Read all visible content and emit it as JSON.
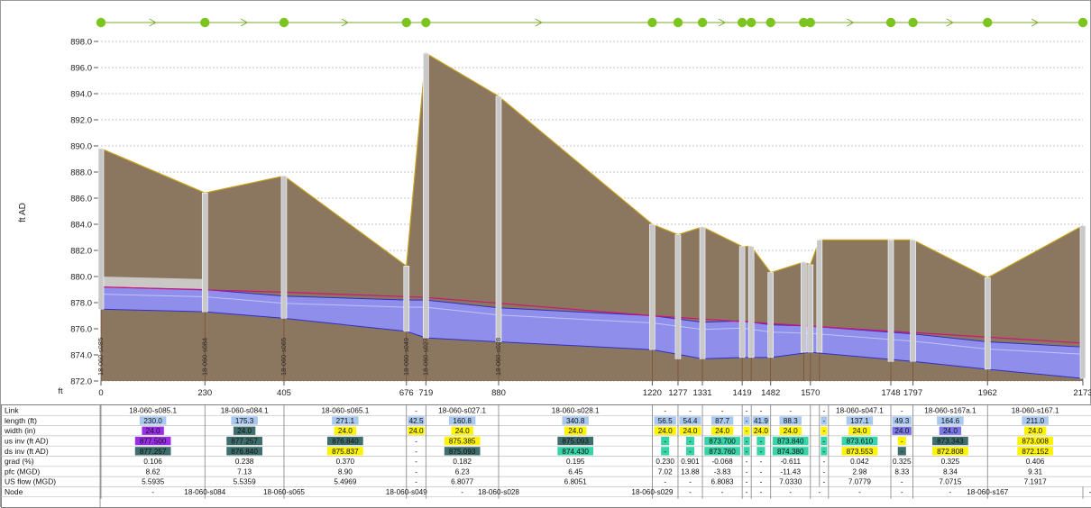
{
  "chart_data": {
    "type": "long-section-profile",
    "ylabel": "ft AD",
    "xlabel": "ft",
    "ylim": [
      872.0,
      898.0
    ],
    "yticks": [
      "872.0",
      "874.0",
      "876.0",
      "878.0",
      "880.0",
      "882.0",
      "884.0",
      "886.0",
      "888.0",
      "890.0",
      "892.0",
      "894.0",
      "896.0",
      "898.0"
    ],
    "xlim": [
      0,
      2173
    ],
    "xticks": [
      0,
      230,
      405,
      676,
      719,
      880,
      1220,
      1277,
      1331,
      1419,
      1482,
      1570,
      1748,
      1797,
      1962,
      2173
    ],
    "colors": {
      "ground": "#8b7660",
      "ground_line": "#c8a11c",
      "pipe": "#8f8feb",
      "pipe_edge": "#3030c8",
      "hgl": "#d01478",
      "manhole": "#c8c8c8",
      "node_marker": "#7cc420",
      "purple": "#9a2ee8",
      "teal": "#3d6e6b",
      "yellow": "#fff400",
      "cyan": "#37d4a8",
      "lightblue": "#a9c8f0",
      "blue": "#7a78e8"
    },
    "nodes": [
      {
        "x": 0,
        "name": "18-060-s085",
        "ground": 889.8
      },
      {
        "x": 230,
        "name": "18-060-s084",
        "ground": 886.4
      },
      {
        "x": 405,
        "name": "18-060-s065",
        "ground": 887.7
      },
      {
        "x": 676,
        "name": "18-060-s049",
        "ground": 880.8
      },
      {
        "x": 719,
        "name": "18-060-s027",
        "ground": 897.1
      },
      {
        "x": 880,
        "name": "18-060-s028",
        "ground": 893.8
      },
      {
        "x": 1220,
        "name": "",
        "ground": 884.0
      },
      {
        "x": 1277,
        "name": "",
        "ground": 883.2
      },
      {
        "x": 1331,
        "name": "",
        "ground": 883.8
      },
      {
        "x": 1419,
        "name": "",
        "ground": 882.3
      },
      {
        "x": 1439,
        "name": "",
        "ground": 882.3
      },
      {
        "x": 1482,
        "name": "",
        "ground": 880.3
      },
      {
        "x": 1555,
        "name": "",
        "ground": 881.1
      },
      {
        "x": 1570,
        "name": "",
        "ground": 880.9
      },
      {
        "x": 1590,
        "name": "",
        "ground": 882.8
      },
      {
        "x": 1748,
        "name": "",
        "ground": 882.8
      },
      {
        "x": 1797,
        "name": "",
        "ground": 882.8
      },
      {
        "x": 1962,
        "name": "",
        "ground": 879.9
      },
      {
        "x": 2173,
        "name": "",
        "ground": 883.9
      }
    ],
    "pipe_top": [
      [
        0,
        879.2
      ],
      [
        230,
        879.0
      ],
      [
        405,
        878.5
      ],
      [
        676,
        878.2
      ],
      [
        719,
        878.2
      ],
      [
        880,
        877.6
      ],
      [
        1220,
        877.0
      ],
      [
        1331,
        876.5
      ],
      [
        1419,
        876.6
      ],
      [
        1482,
        876.3
      ],
      [
        1570,
        876.2
      ],
      [
        1797,
        875.6
      ],
      [
        1962,
        875.0
      ],
      [
        2173,
        874.6
      ]
    ],
    "pipe_bottom": [
      [
        0,
        877.5
      ],
      [
        230,
        877.3
      ],
      [
        405,
        876.8
      ],
      [
        676,
        875.8
      ],
      [
        719,
        875.3
      ],
      [
        880,
        875.0
      ],
      [
        1220,
        874.4
      ],
      [
        1331,
        873.7
      ],
      [
        1419,
        873.8
      ],
      [
        1482,
        873.8
      ],
      [
        1570,
        874.2
      ],
      [
        1797,
        873.5
      ],
      [
        1962,
        872.9
      ],
      [
        2173,
        872.2
      ]
    ],
    "hgl": [
      [
        0,
        879.2
      ],
      [
        405,
        878.8
      ],
      [
        719,
        878.4
      ],
      [
        1220,
        877.0
      ],
      [
        1570,
        876.2
      ],
      [
        2173,
        874.9
      ]
    ],
    "node_marker_x": [
      0,
      230,
      405,
      676,
      719,
      1220,
      1277,
      1331,
      1419,
      1439,
      1482,
      1555,
      1570,
      1748,
      1797,
      1962,
      2173
    ],
    "table": {
      "row_labels": [
        "Link",
        "length (ft)",
        "width (in)",
        "us inv (ft AD)",
        "ds inv (ft AD)",
        "grad (%)",
        "pfc (MGD)",
        "US flow (MGD)",
        "Node"
      ],
      "columns": [
        {
          "x0": 0,
          "x1": 230,
          "link": "18-060-s085.1",
          "length": "230.0",
          "length_c": "lightblue",
          "width": "24.0",
          "width_c": "purple",
          "usinv": "877.500",
          "usinv_c": "purple",
          "dsinv": "877.257",
          "dsinv_c": "teal",
          "grad": "0.106",
          "pfc": "8.62",
          "flow": "5.5935"
        },
        {
          "x0": 230,
          "x1": 405,
          "link": "18-060-s084.1",
          "length": "175.3",
          "length_c": "lightblue",
          "width": "24.0",
          "width_c": "teal",
          "usinv": "877.257",
          "usinv_c": "teal",
          "dsinv": "876.840",
          "dsinv_c": "teal",
          "grad": "0.238",
          "pfc": "7.13",
          "flow": "5.5359"
        },
        {
          "x0": 405,
          "x1": 676,
          "link": "18-060-s065.1",
          "length": "271.1",
          "length_c": "lightblue",
          "width": "24.0",
          "width_c": "yellow",
          "usinv": "876.840",
          "usinv_c": "teal",
          "dsinv": "875.837",
          "dsinv_c": "yellow",
          "grad": "0.370",
          "pfc": "8.90",
          "flow": "5.4969"
        },
        {
          "x0": 676,
          "x1": 719,
          "link": "-",
          "length": "42.5",
          "length_c": "lightblue",
          "width": "24.0",
          "width_c": "yellow",
          "usinv": "-",
          "usinv_c": "",
          "dsinv": "-",
          "dsinv_c": "",
          "grad": "-",
          "pfc": "-",
          "flow": "-"
        },
        {
          "x0": 719,
          "x1": 880,
          "link": "18-060-s027.1",
          "length": "160.8",
          "length_c": "lightblue",
          "width": "24.0",
          "width_c": "yellow",
          "usinv": "875.385",
          "usinv_c": "yellow",
          "dsinv": "875.093",
          "dsinv_c": "teal",
          "grad": "0.182",
          "pfc": "6.23",
          "flow": "6.8077"
        },
        {
          "x0": 880,
          "x1": 1220,
          "link": "18-060-s028.1",
          "length": "340.8",
          "length_c": "lightblue",
          "width": "24.0",
          "width_c": "yellow",
          "usinv": "875.093",
          "usinv_c": "teal",
          "dsinv": "874.430",
          "dsinv_c": "cyan",
          "grad": "0.195",
          "pfc": "6.45",
          "flow": "6.8051"
        },
        {
          "x0": 1220,
          "x1": 1277,
          "link": "-",
          "length": "56.5",
          "length_c": "lightblue",
          "width": "24.0",
          "width_c": "yellow",
          "usinv": "-",
          "usinv_c": "cyan",
          "dsinv": "-",
          "dsinv_c": "cyan",
          "grad": "0.230",
          "pfc": "7.02",
          "flow": "-"
        },
        {
          "x0": 1277,
          "x1": 1331,
          "link": "-",
          "length": "54.4",
          "length_c": "lightblue",
          "width": "24.0",
          "width_c": "yellow",
          "usinv": "-",
          "usinv_c": "cyan",
          "dsinv": "-",
          "dsinv_c": "cyan",
          "grad": "0.901",
          "pfc": "13.88",
          "flow": "-"
        },
        {
          "x0": 1331,
          "x1": 1419,
          "link": "-",
          "length": "87.7",
          "length_c": "lightblue",
          "width": "24.0",
          "width_c": "yellow",
          "usinv": "873.700",
          "usinv_c": "cyan",
          "dsinv": "873.760",
          "dsinv_c": "cyan",
          "grad": "-0.068",
          "pfc": "-3.83",
          "flow": "6.8083"
        },
        {
          "x0": 1419,
          "x1": 1439,
          "link": "-",
          "length": "-",
          "length_c": "lightblue",
          "width": "-",
          "width_c": "yellow",
          "usinv": "-",
          "usinv_c": "cyan",
          "dsinv": "-",
          "dsinv_c": "cyan",
          "grad": "-",
          "pfc": "-",
          "flow": "-"
        },
        {
          "x0": 1439,
          "x1": 1482,
          "link": "-",
          "length": "41.9",
          "length_c": "lightblue",
          "width": "24.0",
          "width_c": "yellow",
          "usinv": "-",
          "usinv_c": "cyan",
          "dsinv": "-",
          "dsinv_c": "cyan",
          "grad": "-",
          "pfc": "-",
          "flow": "-"
        },
        {
          "x0": 1482,
          "x1": 1570,
          "link": "-",
          "length": "88.3",
          "length_c": "lightblue",
          "width": "24.0",
          "width_c": "yellow",
          "usinv": "873.840",
          "usinv_c": "cyan",
          "dsinv": "874.380",
          "dsinv_c": "cyan",
          "grad": "-0.611",
          "pfc": "-11.43",
          "flow": "7.0330"
        },
        {
          "x0": 1570,
          "x1": 1590,
          "link": "",
          "length": "",
          "length_c": "",
          "width": "",
          "width_c": "",
          "usinv": "",
          "usinv_c": "",
          "dsinv": "",
          "dsinv_c": "",
          "grad": "",
          "pfc": "",
          "flow": ""
        },
        {
          "x0": 1590,
          "x1": 1610,
          "link": "-",
          "length": "-",
          "length_c": "lightblue",
          "width": "-",
          "width_c": "yellow",
          "usinv": "-",
          "usinv_c": "cyan",
          "dsinv": "-",
          "dsinv_c": "cyan",
          "grad": "-",
          "pfc": "-",
          "flow": "-"
        },
        {
          "x0": 1610,
          "x1": 1748,
          "link": "18-060-s047.1",
          "length": "137.1",
          "length_c": "lightblue",
          "width": "24.0",
          "width_c": "yellow",
          "usinv": "873.610",
          "usinv_c": "cyan",
          "dsinv": "873.553",
          "dsinv_c": "yellow",
          "grad": "0.042",
          "pfc": "2.98",
          "flow": "7.0779"
        },
        {
          "x0": 1748,
          "x1": 1797,
          "link": "-",
          "length": "49.3",
          "length_c": "lightblue",
          "width": "24.0",
          "width_c": "blue",
          "usinv": "-",
          "usinv_c": "yellow",
          "dsinv": "-",
          "dsinv_c": "teal",
          "grad": "0.325",
          "pfc": "8.33",
          "flow": "-"
        },
        {
          "x0": 1797,
          "x1": 1962,
          "link": "18-060-s167a.1",
          "length": "164.6",
          "length_c": "lightblue",
          "width": "24.0",
          "width_c": "blue",
          "usinv": "873.343",
          "usinv_c": "teal",
          "dsinv": "872.808",
          "dsinv_c": "yellow",
          "grad": "0.325",
          "pfc": "8.34",
          "flow": "7.0715"
        },
        {
          "x0": 1962,
          "x1": 2173,
          "link": "18-060-s167.1",
          "length": "211.0",
          "length_c": "lightblue",
          "width": "24.0",
          "width_c": "yellow",
          "usinv": "873.008",
          "usinv_c": "yellow",
          "dsinv": "872.152",
          "dsinv_c": "yellow",
          "grad": "0.406",
          "pfc": "9.31",
          "flow": "7.1917"
        }
      ],
      "node_row": [
        {
          "x": 0,
          "text": "-"
        },
        {
          "x": 230,
          "text": "18-060-s084"
        },
        {
          "x": 405,
          "text": "18-060-s065"
        },
        {
          "x": 676,
          "text": "18-060-s049"
        },
        {
          "x": 719,
          "text": "-"
        },
        {
          "x": 880,
          "text": "18-060-s028"
        },
        {
          "x": 1220,
          "text": "18-060-s029"
        },
        {
          "x": 1277,
          "text": "-"
        },
        {
          "x": 1331,
          "text": "-"
        },
        {
          "x": 1419,
          "text": "-"
        },
        {
          "x": 1439,
          "text": "-"
        },
        {
          "x": 1482,
          "text": "-"
        },
        {
          "x": 1570,
          "text": "-"
        },
        {
          "x": 1610,
          "text": "-"
        },
        {
          "x": 1748,
          "text": "-"
        },
        {
          "x": 1797,
          "text": "-"
        },
        {
          "x": 1962,
          "text": "18-060-s167"
        },
        {
          "x": 2173,
          "text": "-"
        }
      ]
    }
  }
}
